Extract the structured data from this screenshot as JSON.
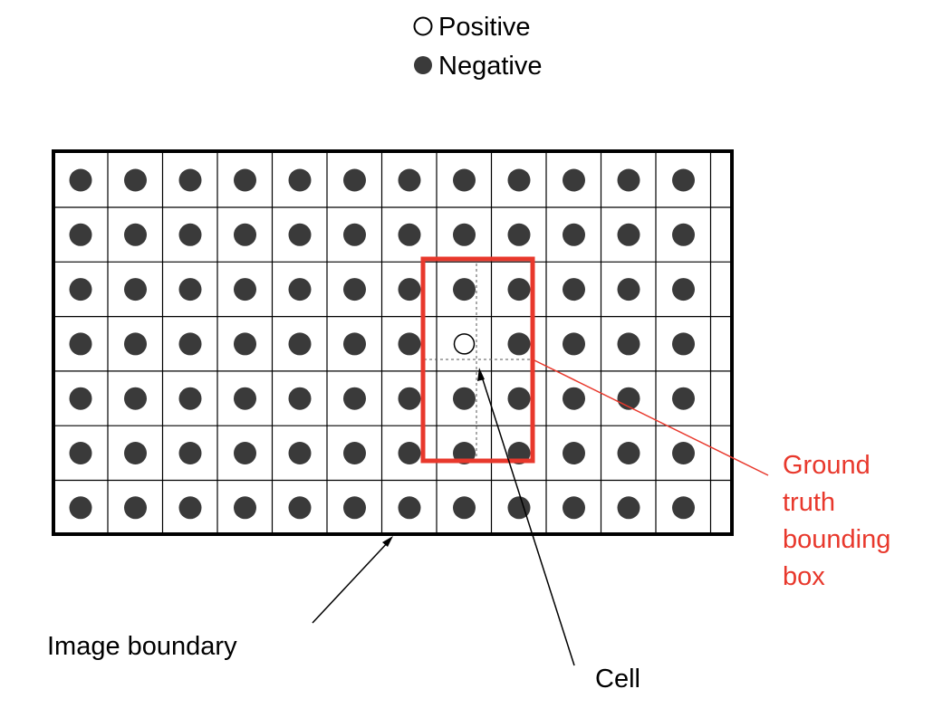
{
  "legend": {
    "positive_label": "Positive",
    "negative_label": "Negative"
  },
  "labels": {
    "ground_truth_line1": "Ground",
    "ground_truth_line2": "truth",
    "ground_truth_line3": "bounding",
    "ground_truth_line4": "box",
    "image_boundary": "Image boundary",
    "cell": "Cell"
  },
  "grid": {
    "columns": 12,
    "rows": 7,
    "positive_cell": {
      "row": 3,
      "col": 7
    }
  },
  "colors": {
    "negative_dot": "#3a3a3a",
    "positive_dot": "#ffffff",
    "box": "#e8382c",
    "annotation_red": "#e8382c",
    "grid_line": "#000000"
  }
}
